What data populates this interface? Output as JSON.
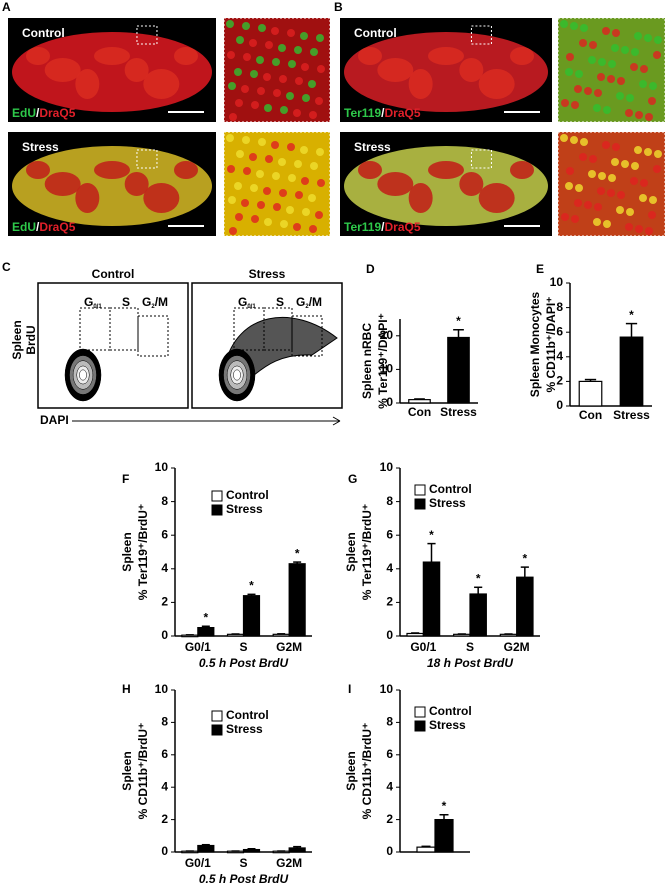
{
  "panel_letters": [
    "A",
    "B",
    "C",
    "D",
    "E",
    "F",
    "G",
    "H",
    "I"
  ],
  "images": [
    {
      "label": "Control",
      "stain_1": "EdU",
      "stain_2": "DraQ5"
    },
    {
      "label": "Stress",
      "stain_1": "EdU",
      "stain_2": "DraQ5"
    },
    {
      "label": "Control",
      "stain_1": "Ter119",
      "stain_2": "DraQ5"
    },
    {
      "label": "Stress",
      "stain_1": "Ter119",
      "stain_2": "DraQ5"
    }
  ],
  "stain_separator": "/",
  "flow": {
    "conditions": [
      "Control",
      "Stress"
    ],
    "y_label_1": "Spleen",
    "y_label_2": "BrdU",
    "x_label": "DAPI",
    "gates": [
      {
        "text": "G",
        "sub": "0/1"
      },
      {
        "text": "S"
      },
      {
        "text": "G",
        "sub": "2",
        "suffix": "/M"
      }
    ]
  },
  "chart_data": [
    {
      "type": "bar",
      "ylabel": "Spleen nRBC",
      "ylabel_sub": "% Ter119⁺/DAPI⁺",
      "categories": [
        "Con",
        "Stress"
      ],
      "values": [
        1,
        19.5
      ],
      "errors": [
        0.2,
        2.3
      ],
      "annotations": [
        null,
        "*"
      ],
      "colors": [
        "#ffffff",
        "#000000"
      ],
      "ylim": [
        0,
        25
      ],
      "yticks": [
        0,
        10,
        20
      ]
    },
    {
      "type": "bar",
      "ylabel": "Spleen Monocytes",
      "ylabel_sub": "% CD11b⁺/DAPI⁺",
      "categories": [
        "Con",
        "Stress"
      ],
      "values": [
        2.0,
        5.6
      ],
      "errors": [
        0.15,
        1.1
      ],
      "annotations": [
        null,
        "*"
      ],
      "colors": [
        "#ffffff",
        "#000000"
      ],
      "ylim": [
        0,
        10
      ],
      "yticks": [
        0,
        2,
        4,
        6,
        8,
        10
      ]
    },
    {
      "type": "grouped-bar",
      "ylabel": "Spleen",
      "ylabel_sub": "% Ter119⁺/BrdU⁺",
      "xlabel": "0.5 h Post BrdU",
      "categories": [
        "G0/1",
        "S",
        "G2M"
      ],
      "series": [
        {
          "name": "Control",
          "color": "#ffffff",
          "values": [
            0.05,
            0.1,
            0.1
          ],
          "errors": [
            0.02,
            0.02,
            0.03
          ]
        },
        {
          "name": "Stress",
          "color": "#000000",
          "values": [
            0.5,
            2.4,
            4.3
          ],
          "errors": [
            0.08,
            0.08,
            0.1
          ],
          "annotations": [
            "*",
            "*",
            "*"
          ]
        }
      ],
      "ylim": [
        0,
        10
      ],
      "yticks": [
        0,
        2,
        4,
        6,
        8,
        10
      ]
    },
    {
      "type": "grouped-bar",
      "ylabel": "Spleen",
      "ylabel_sub": "% Ter119⁺/BrdU⁺",
      "xlabel": "18 h Post BrdU",
      "categories": [
        "G0/1",
        "S",
        "G2M"
      ],
      "series": [
        {
          "name": "Control",
          "color": "#ffffff",
          "values": [
            0.15,
            0.1,
            0.1
          ],
          "errors": [
            0.03,
            0.02,
            0.02
          ]
        },
        {
          "name": "Stress",
          "color": "#000000",
          "values": [
            4.4,
            2.5,
            3.5
          ],
          "errors": [
            1.1,
            0.4,
            0.6
          ],
          "annotations": [
            "*",
            "*",
            "*"
          ]
        }
      ],
      "ylim": [
        0,
        10
      ],
      "yticks": [
        0,
        2,
        4,
        6,
        8,
        10
      ]
    },
    {
      "type": "grouped-bar",
      "ylabel": "Spleen",
      "ylabel_sub": "% CD11b⁺/BrdU⁺",
      "xlabel": "0.5 h Post BrdU",
      "categories": [
        "G0/1",
        "S",
        "G2M"
      ],
      "series": [
        {
          "name": "Control",
          "color": "#ffffff",
          "values": [
            0.05,
            0.05,
            0.05
          ],
          "errors": [
            0.01,
            0.01,
            0.01
          ]
        },
        {
          "name": "Stress",
          "color": "#000000",
          "values": [
            0.4,
            0.15,
            0.25
          ],
          "errors": [
            0.05,
            0.05,
            0.08
          ]
        }
      ],
      "ylim": [
        0,
        10
      ],
      "yticks": [
        0,
        2,
        4,
        6,
        8,
        10
      ]
    },
    {
      "type": "grouped-bar",
      "ylabel": "Spleen",
      "ylabel_sub": "% CD11b⁺/BrdU⁺",
      "categories": [
        null
      ],
      "series": [
        {
          "name": "Control",
          "color": "#ffffff",
          "values": [
            0.3
          ],
          "errors": [
            0.05
          ]
        },
        {
          "name": "Stress",
          "color": "#000000",
          "values": [
            2.0
          ],
          "errors": [
            0.3
          ],
          "annotations": [
            "*"
          ]
        }
      ],
      "ylim": [
        0,
        10
      ],
      "yticks": [
        0,
        2,
        4,
        6,
        8,
        10
      ]
    }
  ]
}
